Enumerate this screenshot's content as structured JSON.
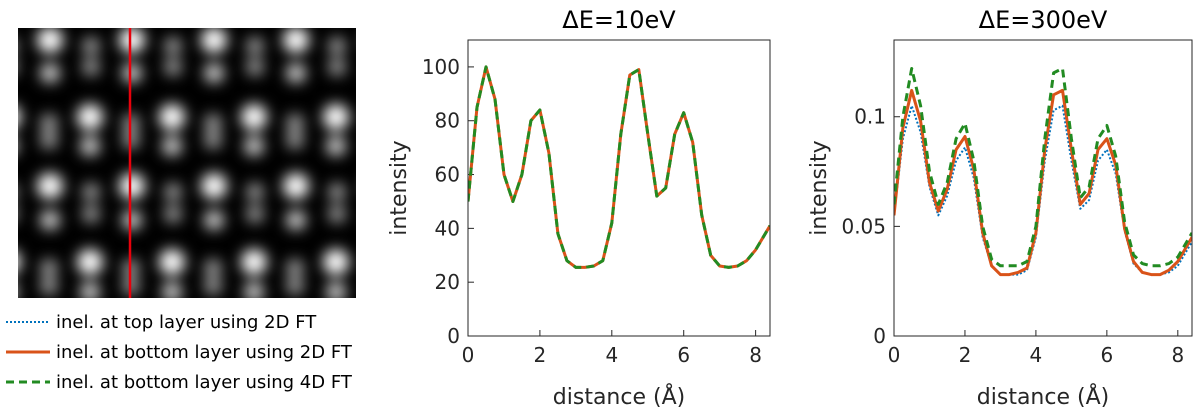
{
  "image_panel": {
    "lattice_image": "hexagonal-lattice-image",
    "line_cut_color": "#e8000b"
  },
  "legend": {
    "entries": [
      {
        "label": "inel. at top layer using 2D FT",
        "color": "#0072bd",
        "style": "dotted"
      },
      {
        "label": "inel. at bottom layer using 2D FT",
        "color": "#d95319",
        "style": "solid"
      },
      {
        "label": "inel. at bottom layer using 4D FT",
        "color": "#228b22",
        "style": "dashed"
      }
    ]
  },
  "chart_data": [
    {
      "type": "line",
      "title": "ΔE=10eV",
      "xlabel": "distance (Å)",
      "ylabel": "intensity",
      "xlim": [
        0,
        8.4
      ],
      "ylim": [
        0,
        110
      ],
      "xticks": [
        0,
        2,
        4,
        6,
        8
      ],
      "xtick_labels": [
        "0",
        "2",
        "4",
        "6",
        "8"
      ],
      "yticks": [
        0,
        20,
        40,
        60,
        80,
        100
      ],
      "ytick_labels": [
        "0",
        "20",
        "40",
        "60",
        "80",
        "100"
      ],
      "grid": false,
      "series": [
        {
          "name": "inel. at top layer using 2D FT",
          "x": [
            0,
            0.25,
            0.5,
            0.75,
            1.0,
            1.25,
            1.5,
            1.75,
            2.0,
            2.25,
            2.5,
            2.75,
            3.0,
            3.25,
            3.5,
            3.75,
            4.0,
            4.25,
            4.5,
            4.75,
            5.0,
            5.25,
            5.5,
            5.75,
            6.0,
            6.25,
            6.5,
            6.75,
            7.0,
            7.25,
            7.5,
            7.75,
            8.0,
            8.4
          ],
          "y": [
            50,
            85,
            100,
            88,
            60,
            50,
            60,
            80,
            84,
            68,
            38,
            28,
            25.5,
            25.5,
            26,
            28,
            42,
            75,
            97,
            99,
            75,
            52,
            55,
            75,
            83,
            72,
            45,
            30,
            26,
            25.5,
            26,
            28,
            32,
            41
          ]
        },
        {
          "name": "inel. at bottom layer using 2D FT",
          "x": [
            0,
            0.25,
            0.5,
            0.75,
            1.0,
            1.25,
            1.5,
            1.75,
            2.0,
            2.25,
            2.5,
            2.75,
            3.0,
            3.25,
            3.5,
            3.75,
            4.0,
            4.25,
            4.5,
            4.75,
            5.0,
            5.25,
            5.5,
            5.75,
            6.0,
            6.25,
            6.5,
            6.75,
            7.0,
            7.25,
            7.5,
            7.75,
            8.0,
            8.4
          ],
          "y": [
            50,
            85,
            100,
            88,
            60,
            50,
            60,
            80,
            84,
            68,
            38,
            28,
            25.5,
            25.5,
            26,
            28,
            42,
            75,
            97,
            99,
            75,
            52,
            55,
            75,
            83,
            72,
            45,
            30,
            26,
            25.5,
            26,
            28,
            32,
            41
          ]
        },
        {
          "name": "inel. at bottom layer using 4D FT",
          "x": [
            0,
            0.25,
            0.5,
            0.75,
            1.0,
            1.25,
            1.5,
            1.75,
            2.0,
            2.25,
            2.5,
            2.75,
            3.0,
            3.25,
            3.5,
            3.75,
            4.0,
            4.25,
            4.5,
            4.75,
            5.0,
            5.25,
            5.5,
            5.75,
            6.0,
            6.25,
            6.5,
            6.75,
            7.0,
            7.25,
            7.5,
            7.75,
            8.0,
            8.4
          ],
          "y": [
            50,
            85,
            100,
            88,
            60,
            50,
            60,
            80,
            84,
            68,
            38,
            28,
            25.5,
            25.5,
            26,
            28,
            42,
            75,
            97,
            99,
            75,
            52,
            55,
            75,
            83,
            72,
            45,
            30,
            26,
            25.5,
            26,
            28,
            32,
            41
          ]
        }
      ]
    },
    {
      "type": "line",
      "title": "ΔE=300eV",
      "xlabel": "distance (Å)",
      "ylabel": "intensity",
      "xlim": [
        0,
        8.4
      ],
      "ylim": [
        0,
        0.135
      ],
      "xticks": [
        0,
        2,
        4,
        6,
        8
      ],
      "xtick_labels": [
        "0",
        "2",
        "4",
        "6",
        "8"
      ],
      "yticks": [
        0,
        0.05,
        0.1
      ],
      "ytick_labels": [
        "0",
        "0.05",
        "0.1"
      ],
      "grid": false,
      "series": [
        {
          "name": "inel. at top layer using 2D FT",
          "x": [
            0,
            0.25,
            0.5,
            0.75,
            1.0,
            1.25,
            1.5,
            1.75,
            2.0,
            2.25,
            2.5,
            2.75,
            3.0,
            3.25,
            3.5,
            3.75,
            4.0,
            4.25,
            4.5,
            4.75,
            5.0,
            5.25,
            5.5,
            5.75,
            6.0,
            6.25,
            6.5,
            6.75,
            7.0,
            7.25,
            7.5,
            7.75,
            8.0,
            8.4
          ],
          "y": [
            0.055,
            0.09,
            0.105,
            0.093,
            0.068,
            0.055,
            0.064,
            0.08,
            0.086,
            0.072,
            0.045,
            0.032,
            0.028,
            0.028,
            0.028,
            0.03,
            0.045,
            0.08,
            0.103,
            0.105,
            0.08,
            0.058,
            0.062,
            0.08,
            0.085,
            0.074,
            0.048,
            0.033,
            0.029,
            0.028,
            0.028,
            0.029,
            0.032,
            0.043
          ]
        },
        {
          "name": "inel. at bottom layer using 2D FT",
          "x": [
            0,
            0.25,
            0.5,
            0.75,
            1.0,
            1.25,
            1.5,
            1.75,
            2.0,
            2.25,
            2.5,
            2.75,
            3.0,
            3.25,
            3.5,
            3.75,
            4.0,
            4.25,
            4.5,
            4.75,
            5.0,
            5.25,
            5.5,
            5.75,
            6.0,
            6.25,
            6.5,
            6.75,
            7.0,
            7.25,
            7.5,
            7.75,
            8.0,
            8.4
          ],
          "y": [
            0.055,
            0.095,
            0.112,
            0.098,
            0.07,
            0.057,
            0.067,
            0.085,
            0.091,
            0.076,
            0.047,
            0.032,
            0.028,
            0.028,
            0.029,
            0.031,
            0.047,
            0.085,
            0.11,
            0.112,
            0.085,
            0.06,
            0.065,
            0.085,
            0.09,
            0.078,
            0.049,
            0.034,
            0.029,
            0.028,
            0.028,
            0.03,
            0.034,
            0.045
          ]
        },
        {
          "name": "inel. at bottom layer using 4D FT",
          "x": [
            0,
            0.25,
            0.5,
            0.75,
            1.0,
            1.25,
            1.5,
            1.75,
            2.0,
            2.25,
            2.5,
            2.75,
            3.0,
            3.25,
            3.5,
            3.75,
            4.0,
            4.25,
            4.5,
            4.75,
            5.0,
            5.25,
            5.5,
            5.75,
            6.0,
            6.25,
            6.5,
            6.75,
            7.0,
            7.25,
            7.5,
            7.75,
            8.0,
            8.4
          ],
          "y": [
            0.06,
            0.1,
            0.122,
            0.105,
            0.075,
            0.06,
            0.07,
            0.09,
            0.097,
            0.08,
            0.05,
            0.035,
            0.032,
            0.032,
            0.032,
            0.034,
            0.05,
            0.09,
            0.12,
            0.122,
            0.09,
            0.063,
            0.068,
            0.09,
            0.096,
            0.082,
            0.052,
            0.037,
            0.033,
            0.032,
            0.032,
            0.033,
            0.036,
            0.047
          ]
        }
      ]
    }
  ]
}
